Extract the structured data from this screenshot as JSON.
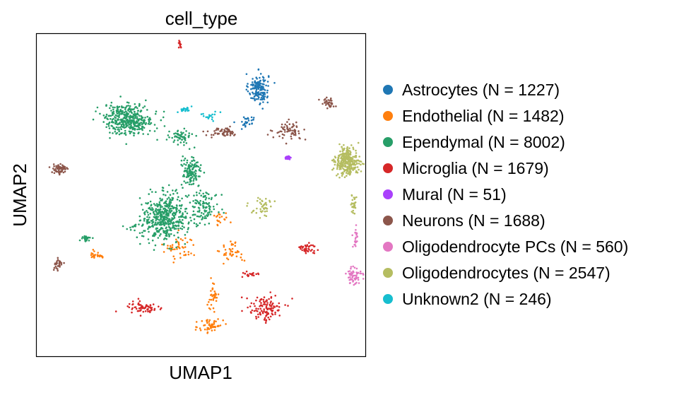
{
  "chart_data": {
    "type": "scatter",
    "title": "cell_type",
    "xlabel": "UMAP1",
    "ylabel": "UMAP2",
    "ticks": "none",
    "grid": false,
    "legend_position": "right",
    "x_range": [
      -10,
      10
    ],
    "y_range": [
      -10,
      10
    ],
    "series": [
      {
        "name": "Astrocytes (N = 1227)",
        "color": "#1f77b4",
        "clusters": [
          {
            "cx": 3.5,
            "cy": 6.6,
            "sx": 0.55,
            "sy": 0.85,
            "weight": 0.85
          },
          {
            "cx": 2.8,
            "cy": 4.6,
            "sx": 0.5,
            "sy": 0.35,
            "weight": 0.15
          }
        ]
      },
      {
        "name": "Endothelial (N = 1482)",
        "color": "#ff7f0e",
        "clusters": [
          {
            "cx": -1.3,
            "cy": -3.3,
            "sx": 0.9,
            "sy": 0.75,
            "weight": 0.22
          },
          {
            "cx": 1.9,
            "cy": -3.5,
            "sx": 0.65,
            "sy": 0.6,
            "weight": 0.18
          },
          {
            "cx": 1.2,
            "cy": -1.5,
            "sx": 0.5,
            "sy": 0.35,
            "weight": 0.08
          },
          {
            "cx": 0.6,
            "cy": -8.1,
            "sx": 0.65,
            "sy": 0.55,
            "weight": 0.24
          },
          {
            "cx": 0.7,
            "cy": -6.3,
            "sx": 0.35,
            "sy": 0.8,
            "weight": 0.16
          },
          {
            "cx": -6.3,
            "cy": -3.7,
            "sx": 0.45,
            "sy": 0.2,
            "weight": 0.12
          }
        ]
      },
      {
        "name": "Ependymal (N = 8002)",
        "color": "#279e68",
        "clusters": [
          {
            "cx": -4.4,
            "cy": 4.7,
            "sx": 1.35,
            "sy": 0.85,
            "weight": 0.33
          },
          {
            "cx": -2.2,
            "cy": -1.4,
            "sx": 1.25,
            "sy": 1.3,
            "weight": 0.39
          },
          {
            "cx": -0.6,
            "cy": 1.4,
            "sx": 0.55,
            "sy": 0.85,
            "weight": 0.11
          },
          {
            "cx": 0.2,
            "cy": -0.7,
            "sx": 0.8,
            "sy": 0.9,
            "weight": 0.09
          },
          {
            "cx": -1.3,
            "cy": 3.6,
            "sx": 0.6,
            "sy": 0.35,
            "weight": 0.05
          },
          {
            "cx": -4.1,
            "cy": -2.0,
            "sx": 0.45,
            "sy": 0.2,
            "weight": 0.01
          },
          {
            "cx": -7.0,
            "cy": -2.7,
            "sx": 0.3,
            "sy": 0.15,
            "weight": 0.02
          }
        ]
      },
      {
        "name": "Microglia (N = 1679)",
        "color": "#d62728",
        "clusters": [
          {
            "cx": 3.9,
            "cy": -7.0,
            "sx": 0.95,
            "sy": 0.75,
            "weight": 0.46
          },
          {
            "cx": -3.5,
            "cy": -7.0,
            "sx": 0.95,
            "sy": 0.4,
            "weight": 0.26
          },
          {
            "cx": 6.4,
            "cy": -3.3,
            "sx": 0.55,
            "sy": 0.35,
            "weight": 0.16
          },
          {
            "cx": -1.3,
            "cy": 9.3,
            "sx": 0.12,
            "sy": 0.25,
            "weight": 0.04
          },
          {
            "cx": 3.0,
            "cy": -4.9,
            "sx": 0.45,
            "sy": 0.2,
            "weight": 0.08
          }
        ]
      },
      {
        "name": "Mural (N = 51)",
        "color": "#aa40fc",
        "clusters": [
          {
            "cx": 5.3,
            "cy": 2.3,
            "sx": 0.18,
            "sy": 0.1,
            "weight": 1.0
          }
        ]
      },
      {
        "name": "Neurons (N = 1688)",
        "color": "#8c564b",
        "clusters": [
          {
            "cx": -8.6,
            "cy": 1.6,
            "sx": 0.5,
            "sy": 0.35,
            "weight": 0.24
          },
          {
            "cx": -8.7,
            "cy": -4.3,
            "sx": 0.25,
            "sy": 0.35,
            "weight": 0.12
          },
          {
            "cx": 7.7,
            "cy": 5.7,
            "sx": 0.35,
            "sy": 0.3,
            "weight": 0.14
          },
          {
            "cx": 1.3,
            "cy": 3.9,
            "sx": 0.85,
            "sy": 0.25,
            "weight": 0.24
          },
          {
            "cx": 5.4,
            "cy": 4.0,
            "sx": 0.8,
            "sy": 0.45,
            "weight": 0.26
          }
        ]
      },
      {
        "name": "Oligodendrocyte PCs (N = 560)",
        "color": "#e377c2",
        "clusters": [
          {
            "cx": 9.3,
            "cy": -5.0,
            "sx": 0.45,
            "sy": 0.55,
            "weight": 0.72
          },
          {
            "cx": 9.4,
            "cy": -2.8,
            "sx": 0.15,
            "sy": 0.6,
            "weight": 0.28
          }
        ]
      },
      {
        "name": "Oligodendrocytes (N = 2547)",
        "color": "#b5bd61",
        "clusters": [
          {
            "cx": 8.9,
            "cy": 2.1,
            "sx": 0.65,
            "sy": 0.75,
            "weight": 0.8
          },
          {
            "cx": 9.3,
            "cy": -0.6,
            "sx": 0.12,
            "sy": 0.55,
            "weight": 0.08
          },
          {
            "cx": 3.8,
            "cy": -0.7,
            "sx": 0.55,
            "sy": 0.6,
            "weight": 0.12
          }
        ]
      },
      {
        "name": "Unknown2 (N = 246)",
        "color": "#17becf",
        "clusters": [
          {
            "cx": -1.0,
            "cy": 5.3,
            "sx": 0.35,
            "sy": 0.18,
            "weight": 0.55
          },
          {
            "cx": 0.6,
            "cy": 4.9,
            "sx": 0.55,
            "sy": 0.25,
            "weight": 0.45
          }
        ]
      }
    ]
  }
}
